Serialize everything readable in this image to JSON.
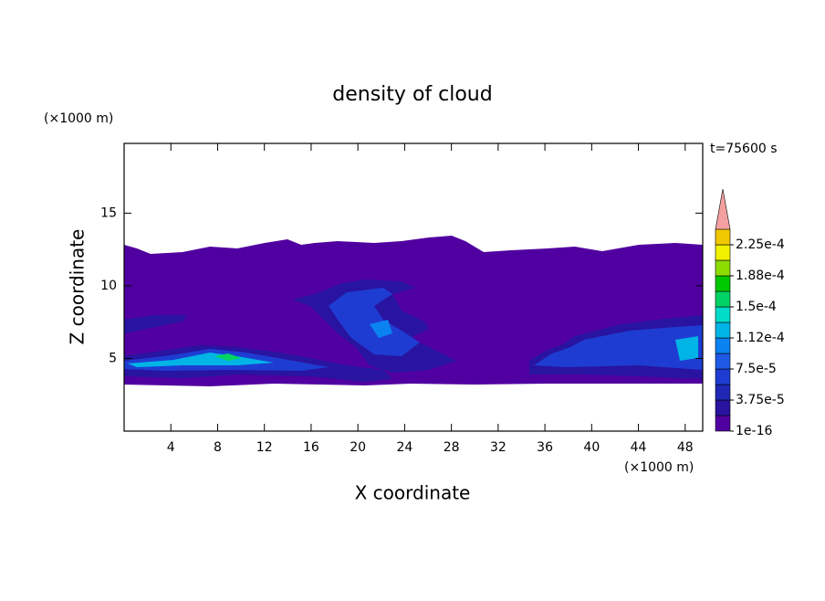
{
  "chart_data": {
    "type": "contour",
    "title": "density of cloud",
    "x_label": "X coordinate",
    "y_label": "Z coordinate",
    "x_unit": "(×1000 m)",
    "y_unit": "(×1000 m)",
    "annotation": "t=75600 s",
    "xlim": [
      0,
      49.5
    ],
    "xticks": [
      4,
      8,
      12,
      16,
      20,
      24,
      28,
      32,
      36,
      40,
      44,
      48
    ],
    "ylim": [
      0,
      19.8
    ],
    "yticks": [
      5,
      10,
      15
    ],
    "levels": [
      1e-16,
      1.875e-05,
      3.75e-05,
      5.625e-05,
      7.5e-05,
      9.375e-05,
      0.0001125,
      0.00013125,
      0.00015,
      0.00016875,
      0.0001875,
      0.00020625,
      0.000225,
      0.00024375
    ],
    "colors": [
      "#5000a0",
      "#2814a0",
      "#1e28b4",
      "#1e3cd2",
      "#1e5ae6",
      "#0a82f0",
      "#00b4e6",
      "#00dcc8",
      "#00d264",
      "#00c800",
      "#8cdc00",
      "#f0f000",
      "#f0c800",
      "#f09600",
      "#f06400",
      "#f03200",
      "#e61414"
    ],
    "over_color": "#f4a0a0",
    "cbar_ticks": [
      {
        "value": 1e-16,
        "label": "1e-16"
      },
      {
        "value": 3.75e-05,
        "label": "3.75e-5"
      },
      {
        "value": 7.5e-05,
        "label": "7.5e-5"
      },
      {
        "value": 0.0001125,
        "label": "1.12e-4"
      },
      {
        "value": 0.00015,
        "label": "1.5e-4"
      },
      {
        "value": 0.0001875,
        "label": "1.88e-4"
      },
      {
        "value": 0.000225,
        "label": "2.25e-4"
      }
    ],
    "grid": false
  }
}
